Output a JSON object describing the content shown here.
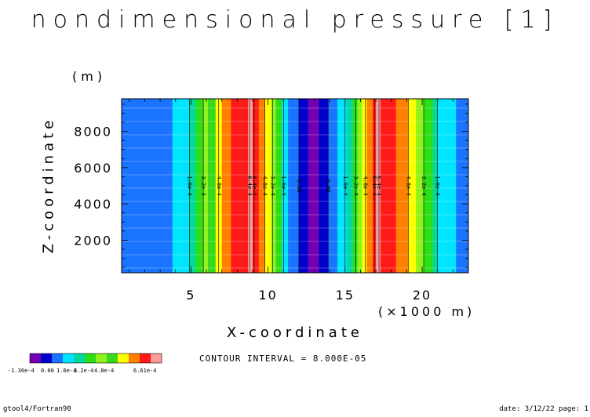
{
  "chart_data": {
    "type": "heatmap",
    "title": "nondimensional pressure [1]",
    "xlabel": "X-coordinate",
    "ylabel": "Z-coordinate",
    "x_unit": "(×1000 m)",
    "y_unit": "(m)",
    "xlim": [
      0.5,
      23
    ],
    "ylim": [
      200,
      9800
    ],
    "x_ticks": [
      5,
      10,
      15,
      20
    ],
    "y_ticks": [
      2000,
      4000,
      6000,
      8000
    ],
    "bands": [
      {
        "x0": 0.5,
        "x1": 3.8,
        "color": "#1a74ff"
      },
      {
        "x0": 3.8,
        "x1": 4.9,
        "color": "#00e5ff"
      },
      {
        "x0": 4.9,
        "x1": 5.3,
        "color": "#00d8a0"
      },
      {
        "x0": 5.3,
        "x1": 5.8,
        "color": "#2adf1a"
      },
      {
        "x0": 5.8,
        "x1": 6.1,
        "color": "#8ef21b"
      },
      {
        "x0": 6.1,
        "x1": 6.6,
        "color": "#39d81f"
      },
      {
        "x0": 6.6,
        "x1": 7.0,
        "color": "#ffff00"
      },
      {
        "x0": 7.0,
        "x1": 7.6,
        "color": "#ff8000"
      },
      {
        "x0": 7.6,
        "x1": 8.7,
        "color": "#ff1a1a"
      },
      {
        "x0": 8.7,
        "x1": 9.0,
        "color": "#ff9a9a"
      },
      {
        "x0": 9.0,
        "x1": 9.4,
        "color": "#ff1a1a"
      },
      {
        "x0": 9.4,
        "x1": 9.8,
        "color": "#ff8000"
      },
      {
        "x0": 9.8,
        "x1": 10.2,
        "color": "#ffff00"
      },
      {
        "x0": 10.2,
        "x1": 10.5,
        "color": "#8ef21b"
      },
      {
        "x0": 10.5,
        "x1": 10.9,
        "color": "#2adf1a"
      },
      {
        "x0": 10.9,
        "x1": 11.3,
        "color": "#00e5ff"
      },
      {
        "x0": 11.3,
        "x1": 12.0,
        "color": "#1a74ff"
      },
      {
        "x0": 12.0,
        "x1": 12.6,
        "color": "#0000cc"
      },
      {
        "x0": 12.6,
        "x1": 13.3,
        "color": "#7300b3"
      },
      {
        "x0": 13.3,
        "x1": 13.9,
        "color": "#0000cc"
      },
      {
        "x0": 13.9,
        "x1": 14.5,
        "color": "#1a74ff"
      },
      {
        "x0": 14.5,
        "x1": 15.1,
        "color": "#00e5ff"
      },
      {
        "x0": 15.1,
        "x1": 15.5,
        "color": "#00d8a0"
      },
      {
        "x0": 15.5,
        "x1": 15.8,
        "color": "#2adf1a"
      },
      {
        "x0": 15.8,
        "x1": 16.1,
        "color": "#8ef21b"
      },
      {
        "x0": 16.1,
        "x1": 16.4,
        "color": "#ffff00"
      },
      {
        "x0": 16.4,
        "x1": 16.8,
        "color": "#ff8000"
      },
      {
        "x0": 16.8,
        "x1": 17.0,
        "color": "#ff1a1a"
      },
      {
        "x0": 17.0,
        "x1": 17.3,
        "color": "#ff9a9a"
      },
      {
        "x0": 17.3,
        "x1": 18.3,
        "color": "#ff1a1a"
      },
      {
        "x0": 18.3,
        "x1": 19.1,
        "color": "#ff8000"
      },
      {
        "x0": 19.1,
        "x1": 19.6,
        "color": "#ffff00"
      },
      {
        "x0": 19.6,
        "x1": 20.1,
        "color": "#8ef21b"
      },
      {
        "x0": 20.1,
        "x1": 20.7,
        "color": "#2adf1a"
      },
      {
        "x0": 20.7,
        "x1": 21.0,
        "color": "#00d8a0"
      },
      {
        "x0": 21.0,
        "x1": 22.2,
        "color": "#00e5ff"
      },
      {
        "x0": 22.2,
        "x1": 23.0,
        "color": "#1a74ff"
      }
    ],
    "contour_labels": [
      {
        "x": 4.9,
        "text": "1.6e-4"
      },
      {
        "x": 5.8,
        "text": "3.2e-4"
      },
      {
        "x": 6.8,
        "text": "4.8e-4"
      },
      {
        "x": 8.8,
        "text": "6.4e-4"
      },
      {
        "x": 9.1,
        "text": "6.4e-4"
      },
      {
        "x": 9.8,
        "text": "4.8e-4"
      },
      {
        "x": 10.3,
        "text": "3.2e-4"
      },
      {
        "x": 11.0,
        "text": "1.6e-4"
      },
      {
        "x": 12.0,
        "text": "0.00"
      },
      {
        "x": 13.9,
        "text": "0.00"
      },
      {
        "x": 15.0,
        "text": "1.6e-4"
      },
      {
        "x": 15.7,
        "text": "3.2e-4"
      },
      {
        "x": 16.3,
        "text": "4.8e-4"
      },
      {
        "x": 16.9,
        "text": "6.4e-4"
      },
      {
        "x": 17.2,
        "text": "6.4e-4"
      },
      {
        "x": 19.1,
        "text": "4.8e-4"
      },
      {
        "x": 20.1,
        "text": "3.2e-4"
      },
      {
        "x": 21.0,
        "text": "1.6e-4"
      }
    ],
    "legend": {
      "colors": [
        "#7300b3",
        "#0000cc",
        "#1a74ff",
        "#00e5ff",
        "#00d8a0",
        "#2adf1a",
        "#8ef21b",
        "#39d81f",
        "#ffff00",
        "#ff8000",
        "#ff1a1a",
        "#ff9a9a"
      ],
      "labels": [
        "-1.36e-4",
        "0.00",
        "1.6e-4",
        "3.2e-4",
        "4.8e-4",
        "6.61e-4"
      ]
    },
    "contour_interval_text": "CONTOUR INTERVAL = 8.000E-05"
  },
  "footer": {
    "left": "gtool4/Fortran90",
    "right": "date: 3/12/22 page: 1"
  }
}
